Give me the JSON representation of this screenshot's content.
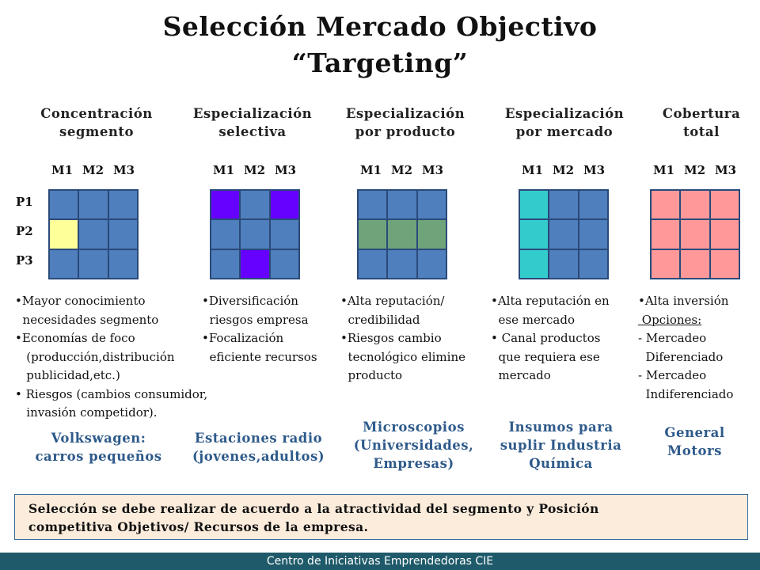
{
  "title": [
    "Selección Mercado Objectivo",
    "“Targeting”"
  ],
  "colors": {
    "blue": "#4f7fbc",
    "yellow": "#ffff99",
    "purple": "#6600ff",
    "green": "#6fa47a",
    "cyan": "#33cccc",
    "pink": "#ff9999",
    "example_text": "#2e5a8a",
    "footer_bg": "#1f5a6a"
  },
  "market_labels": [
    "M1",
    "M2",
    "M3"
  ],
  "product_labels": [
    "P1",
    "P2",
    "P3"
  ],
  "columns": [
    {
      "heading": [
        "Concentración",
        "segmento"
      ],
      "grid": [
        [
          "blue",
          "blue",
          "blue"
        ],
        [
          "yellow",
          "blue",
          "blue"
        ],
        [
          "blue",
          "blue",
          "blue"
        ]
      ],
      "bullets": [
        "•Mayor conocimiento",
        "  necesidades segmento",
        "•Economías de foco",
        "   (producción,distribución",
        "   publicidad,etc.)",
        "• Riesgos (cambios consumidor,",
        "   invasión competidor)."
      ],
      "example": [
        "Volkswagen:",
        "carros pequeños"
      ]
    },
    {
      "heading": [
        "Especialización",
        "selectiva"
      ],
      "grid": [
        [
          "purple",
          "blue",
          "purple"
        ],
        [
          "blue",
          "blue",
          "blue"
        ],
        [
          "blue",
          "purple",
          "blue"
        ]
      ],
      "bullets": [
        "•Diversificación",
        "  riesgos empresa",
        "•Focalización",
        "  eficiente recursos"
      ],
      "example": [
        "Estaciones radio",
        "(jovenes,adultos)"
      ]
    },
    {
      "heading": [
        "Especialización",
        "por producto"
      ],
      "grid": [
        [
          "blue",
          "blue",
          "blue"
        ],
        [
          "green",
          "green",
          "green"
        ],
        [
          "blue",
          "blue",
          "blue"
        ]
      ],
      "bullets": [
        "•Alta reputación/",
        "  credibilidad",
        "•Riesgos cambio",
        "  tecnológico elimine",
        "  producto"
      ],
      "example": [
        "Microscopios",
        "(Universidades,",
        "Empresas)"
      ]
    },
    {
      "heading": [
        "Especialización",
        "por mercado"
      ],
      "grid": [
        [
          "cyan",
          "blue",
          "blue"
        ],
        [
          "cyan",
          "blue",
          "blue"
        ],
        [
          "cyan",
          "blue",
          "blue"
        ]
      ],
      "bullets": [
        "•Alta reputación en",
        "  ese mercado",
        "• Canal productos",
        "  que requiera ese",
        "  mercado"
      ],
      "example": [
        "Insumos para",
        "suplir Industria",
        "Química"
      ]
    },
    {
      "heading": [
        "Cobertura",
        "total"
      ],
      "grid": [
        [
          "pink",
          "pink",
          "pink"
        ],
        [
          "pink",
          "pink",
          "pink"
        ],
        [
          "pink",
          "pink",
          "pink"
        ]
      ],
      "bullets": [
        "•Alta inversión",
        " Opciones:",
        "- Mercadeo",
        "  Diferenciado",
        "- Mercadeo",
        "  Indiferenciado"
      ],
      "example": [
        "General",
        "Motors"
      ]
    }
  ],
  "note": [
    "Selección se debe realizar de acuerdo a la atractividad del segmento y Posición",
    "competitiva Objetivos/ Recursos de la empresa."
  ],
  "footer": "Centro de Iniciativas Emprendedoras CIE"
}
